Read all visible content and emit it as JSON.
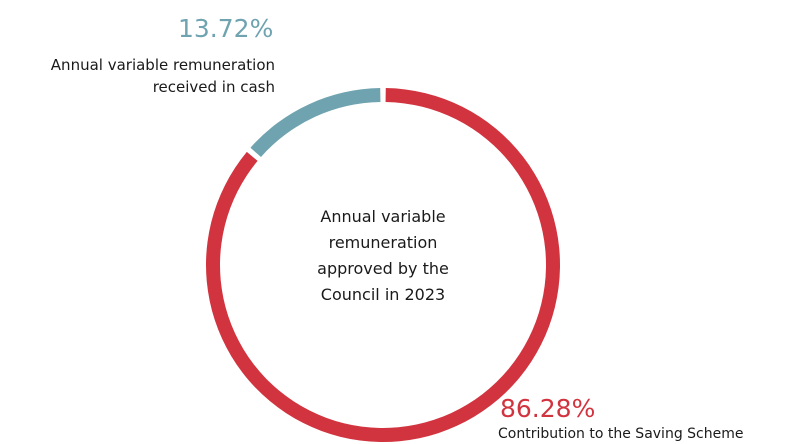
{
  "chart_data": {
    "type": "pie",
    "donut": true,
    "center_text": "Annual variable remuneration approved by the Council in 2023",
    "categories": [
      "Annual variable remuneration received in cash",
      "Contribution to the Saving Scheme"
    ],
    "values": [
      13.72,
      86.28
    ],
    "value_labels": [
      "13.72%",
      "86.28%"
    ],
    "colors": [
      "#6fa3b0",
      "#d2343f"
    ]
  }
}
